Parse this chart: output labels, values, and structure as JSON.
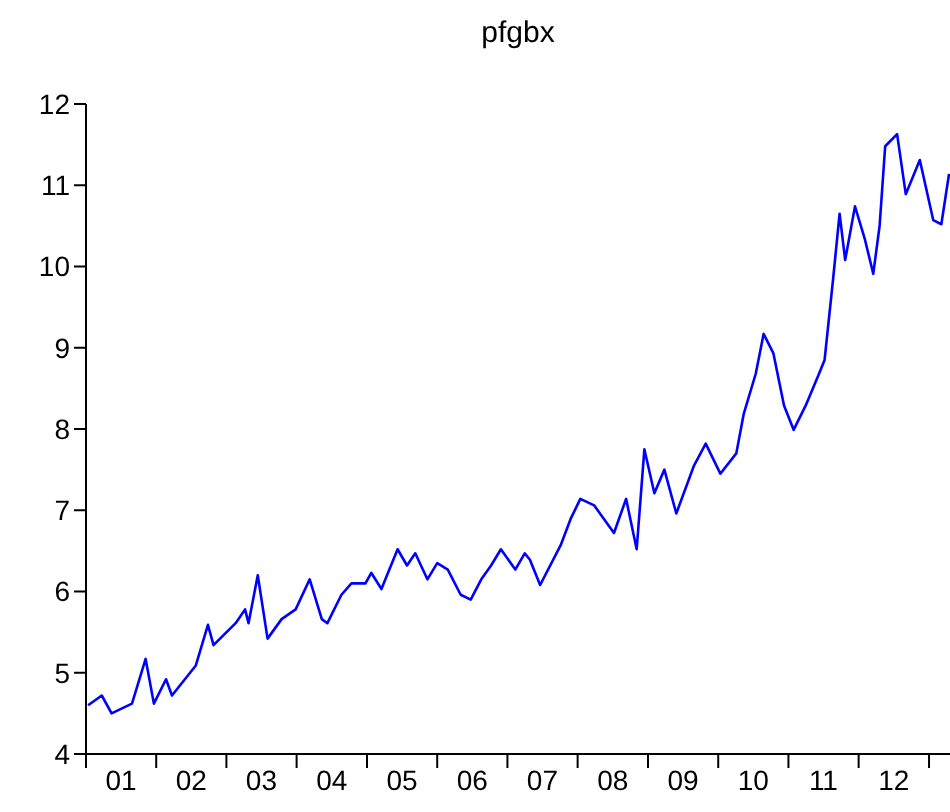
{
  "chart_data": {
    "type": "line",
    "title": "pfgbx",
    "color": "#0000ff",
    "xlim": [
      "2001-01-01",
      "2013-04-20"
    ],
    "ylim": [
      4,
      12
    ],
    "yticks": [
      4,
      5,
      6,
      7,
      8,
      9,
      10,
      11,
      12
    ],
    "xticks": [
      {
        "value": "2001-01-01",
        "label": null
      },
      {
        "value": "2001-07-02",
        "label": "01"
      },
      {
        "value": "2002-01-01",
        "label": null
      },
      {
        "value": "2002-07-02",
        "label": "02"
      },
      {
        "value": "2003-01-01",
        "label": null
      },
      {
        "value": "2003-07-02",
        "label": "03"
      },
      {
        "value": "2004-01-01",
        "label": null
      },
      {
        "value": "2004-07-02",
        "label": "04"
      },
      {
        "value": "2005-01-01",
        "label": null
      },
      {
        "value": "2005-07-02",
        "label": "05"
      },
      {
        "value": "2006-01-01",
        "label": null
      },
      {
        "value": "2006-07-02",
        "label": "06"
      },
      {
        "value": "2007-01-01",
        "label": null
      },
      {
        "value": "2007-07-02",
        "label": "07"
      },
      {
        "value": "2008-01-01",
        "label": null
      },
      {
        "value": "2008-07-02",
        "label": "08"
      },
      {
        "value": "2009-01-01",
        "label": null
      },
      {
        "value": "2009-07-02",
        "label": "09"
      },
      {
        "value": "2010-01-01",
        "label": null
      },
      {
        "value": "2010-07-02",
        "label": "10"
      },
      {
        "value": "2011-01-01",
        "label": null
      },
      {
        "value": "2011-07-02",
        "label": "11"
      },
      {
        "value": "2012-01-01",
        "label": null
      },
      {
        "value": "2012-07-02",
        "label": "12"
      },
      {
        "value": "2013-01-01",
        "label": null
      }
    ],
    "x": [
      "2001-01-12",
      "2001-03-24",
      "2001-05-14",
      "2001-08-28",
      "2001-11-07",
      "2001-12-20",
      "2002-02-21",
      "2002-03-24",
      "2002-07-26",
      "2002-09-27",
      "2002-10-26",
      "2003-02-18",
      "2003-04-08",
      "2003-04-26",
      "2003-06-13",
      "2003-08-03",
      "2003-10-15",
      "2003-12-27",
      "2004-03-09",
      "2004-05-11",
      "2004-06-09",
      "2004-08-21",
      "2004-10-12",
      "2004-12-24",
      "2005-01-23",
      "2005-03-17",
      "2005-06-09",
      "2005-07-28",
      "2005-09-09",
      "2005-11-11",
      "2006-01-01",
      "2006-02-25",
      "2006-05-03",
      "2006-06-24",
      "2006-08-18",
      "2006-10-08",
      "2006-11-28",
      "2007-02-11",
      "2007-04-01",
      "2007-04-28",
      "2007-06-20",
      "2007-10-05",
      "2007-11-25",
      "2008-01-15",
      "2008-03-27",
      "2008-07-08",
      "2008-09-09",
      "2008-11-03",
      "2008-12-13",
      "2009-02-03",
      "2009-03-27",
      "2009-05-28",
      "2009-08-28",
      "2009-10-28",
      "2010-01-12",
      "2010-04-05",
      "2010-05-14",
      "2010-07-15",
      "2010-08-25",
      "2010-10-15",
      "2010-12-09",
      "2011-01-28",
      "2011-04-01",
      "2011-06-09",
      "2011-07-08",
      "2011-08-21",
      "2011-09-24",
      "2011-10-23",
      "2011-12-13",
      "2012-02-03",
      "2012-03-17",
      "2012-04-19",
      "2012-05-18",
      "2012-07-19",
      "2012-09-02",
      "2012-11-14",
      "2013-01-23",
      "2013-03-06",
      "2013-04-15"
    ],
    "values": [
      4.6,
      4.72,
      4.5,
      4.62,
      5.17,
      4.62,
      4.92,
      4.72,
      5.09,
      5.59,
      5.34,
      5.61,
      5.78,
      5.61,
      6.2,
      5.42,
      5.66,
      5.78,
      6.15,
      5.66,
      5.61,
      5.96,
      6.1,
      6.1,
      6.23,
      6.03,
      6.52,
      6.32,
      6.47,
      6.15,
      6.35,
      6.27,
      5.96,
      5.9,
      6.15,
      6.32,
      6.52,
      6.27,
      6.47,
      6.39,
      6.08,
      6.57,
      6.89,
      7.14,
      7.06,
      6.72,
      7.14,
      6.52,
      7.75,
      7.21,
      7.5,
      6.96,
      7.55,
      7.82,
      7.45,
      7.7,
      8.19,
      8.68,
      9.17,
      8.93,
      8.29,
      7.99,
      8.29,
      8.68,
      8.85,
      9.84,
      10.65,
      10.08,
      10.74,
      10.33,
      9.91,
      10.5,
      11.48,
      11.63,
      10.89,
      11.31,
      10.57,
      10.52,
      11.14
    ]
  }
}
